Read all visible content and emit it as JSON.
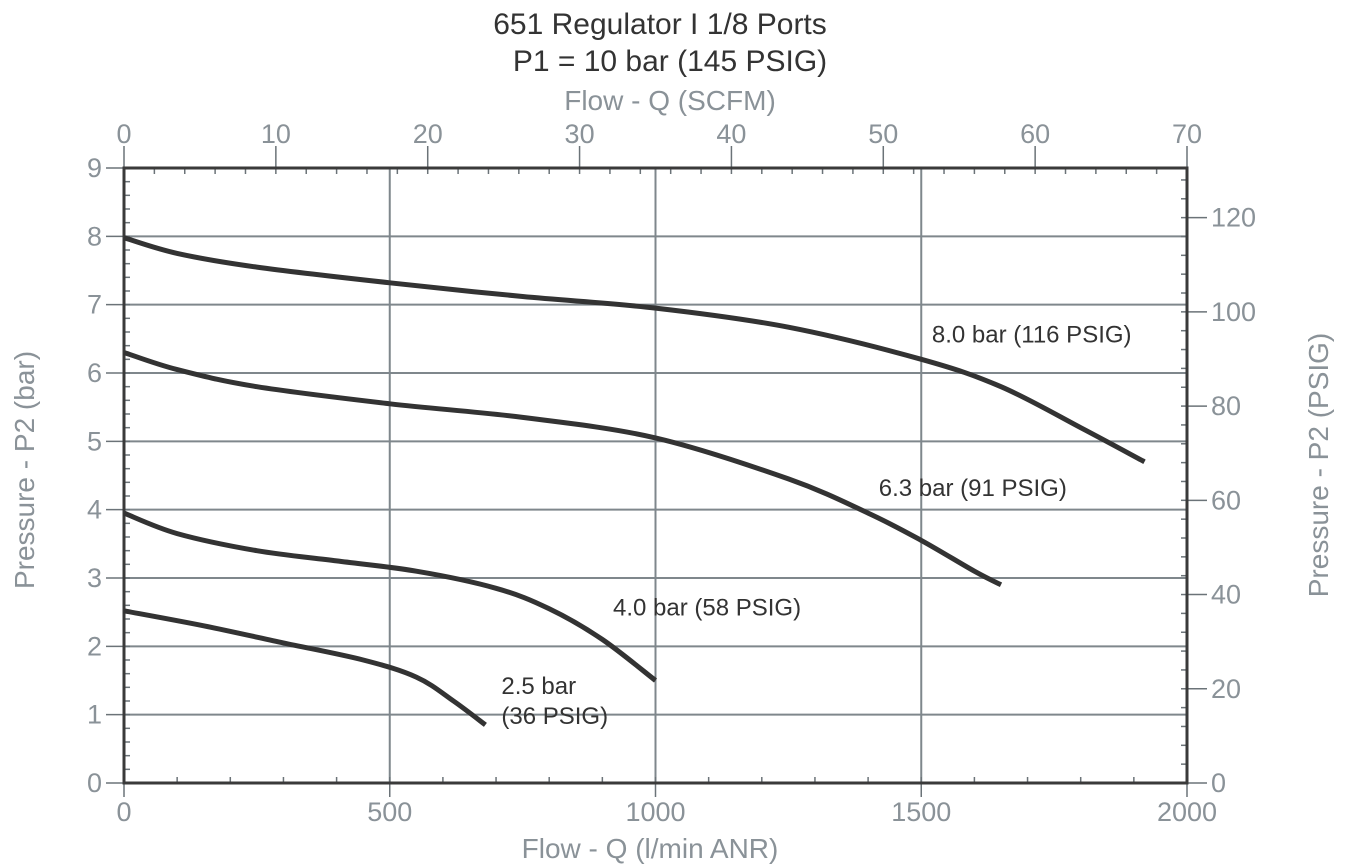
{
  "chart_data": {
    "type": "line",
    "title": "651 Regulator I 1/8 Ports",
    "subtitle": "P1 = 10 bar (145 PSIG)",
    "xlabel": "Flow - Q (l/min ANR)",
    "x2label": "Flow - Q (SCFM)",
    "ylabel": "Pressure - P2 (bar)",
    "y2label": "Pressure - P2 (PSIG)",
    "xlim": [
      0,
      2000
    ],
    "ylim": [
      0,
      9
    ],
    "x2lim": [
      0,
      70
    ],
    "y2max_shown": 120,
    "x_ticks": [
      "0",
      "500",
      "1000",
      "1500",
      "2000"
    ],
    "x2_ticks": [
      "0",
      "10",
      "20",
      "30",
      "40",
      "50",
      "60",
      "70"
    ],
    "y_ticks": [
      "0",
      "1",
      "2",
      "3",
      "4",
      "5",
      "6",
      "7",
      "8",
      "9"
    ],
    "y2_ticks": [
      "0",
      "20",
      "40",
      "60",
      "80",
      "100",
      "120"
    ],
    "grid": true,
    "series": [
      {
        "name": "8.0 bar (116 PSIG)",
        "x": [
          0,
          100,
          250,
          500,
          750,
          1000,
          1250,
          1500,
          1650,
          1800,
          1920
        ],
        "y": [
          7.98,
          7.75,
          7.55,
          7.32,
          7.12,
          6.95,
          6.67,
          6.2,
          5.8,
          5.2,
          4.7
        ]
      },
      {
        "name": "6.3 bar (91 PSIG)",
        "x": [
          0,
          100,
          250,
          500,
          750,
          1000,
          1250,
          1400,
          1500,
          1600,
          1650
        ],
        "y": [
          6.3,
          6.05,
          5.8,
          5.55,
          5.35,
          5.05,
          4.45,
          3.95,
          3.55,
          3.1,
          2.9
        ]
      },
      {
        "name": "4.0 bar (58 PSIG)",
        "x": [
          0,
          100,
          250,
          400,
          550,
          700,
          800,
          900,
          1000
        ],
        "y": [
          3.95,
          3.65,
          3.4,
          3.25,
          3.1,
          2.85,
          2.55,
          2.1,
          1.5
        ]
      },
      {
        "name": "2.5 bar (36 PSIG)",
        "x": [
          0,
          150,
          300,
          450,
          550,
          620,
          680
        ],
        "y": [
          2.52,
          2.3,
          2.05,
          1.8,
          1.55,
          1.2,
          0.85
        ]
      }
    ],
    "curve_labels": [
      {
        "lines": [
          "8.0 bar (116 PSIG)"
        ],
        "x": 1520,
        "y": 6.45
      },
      {
        "lines": [
          "6.3 bar (91 PSIG)"
        ],
        "x": 1420,
        "y": 4.2
      },
      {
        "lines": [
          "4.0 bar (58 PSIG)"
        ],
        "x": 920,
        "y": 2.45
      },
      {
        "lines": [
          "2.5 bar",
          "(36 PSIG)"
        ],
        "x": 710,
        "y": 1.3
      }
    ]
  }
}
